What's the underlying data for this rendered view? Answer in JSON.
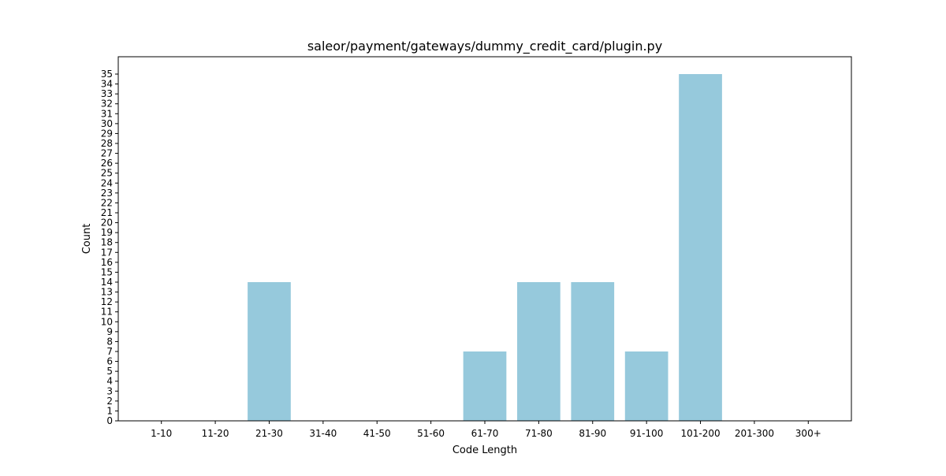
{
  "chart_data": {
    "type": "bar",
    "title": "saleor/payment/gateways/dummy_credit_card/plugin.py",
    "xlabel": "Code Length",
    "ylabel": "Count",
    "categories": [
      "1-10",
      "11-20",
      "21-30",
      "31-40",
      "41-50",
      "51-60",
      "61-70",
      "71-80",
      "81-90",
      "91-100",
      "101-200",
      "201-300",
      "300+"
    ],
    "values": [
      0,
      0,
      14,
      0,
      0,
      0,
      7,
      14,
      14,
      7,
      35,
      0,
      0
    ],
    "ylim": [
      0,
      36.75
    ],
    "yticks": [
      0,
      1,
      2,
      3,
      4,
      5,
      6,
      7,
      8,
      9,
      10,
      11,
      12,
      13,
      14,
      15,
      16,
      17,
      18,
      19,
      20,
      21,
      22,
      23,
      24,
      25,
      26,
      27,
      28,
      29,
      30,
      31,
      32,
      33,
      34,
      35
    ],
    "bar_color": "#96c9dc",
    "grid": false,
    "legend": false
  }
}
